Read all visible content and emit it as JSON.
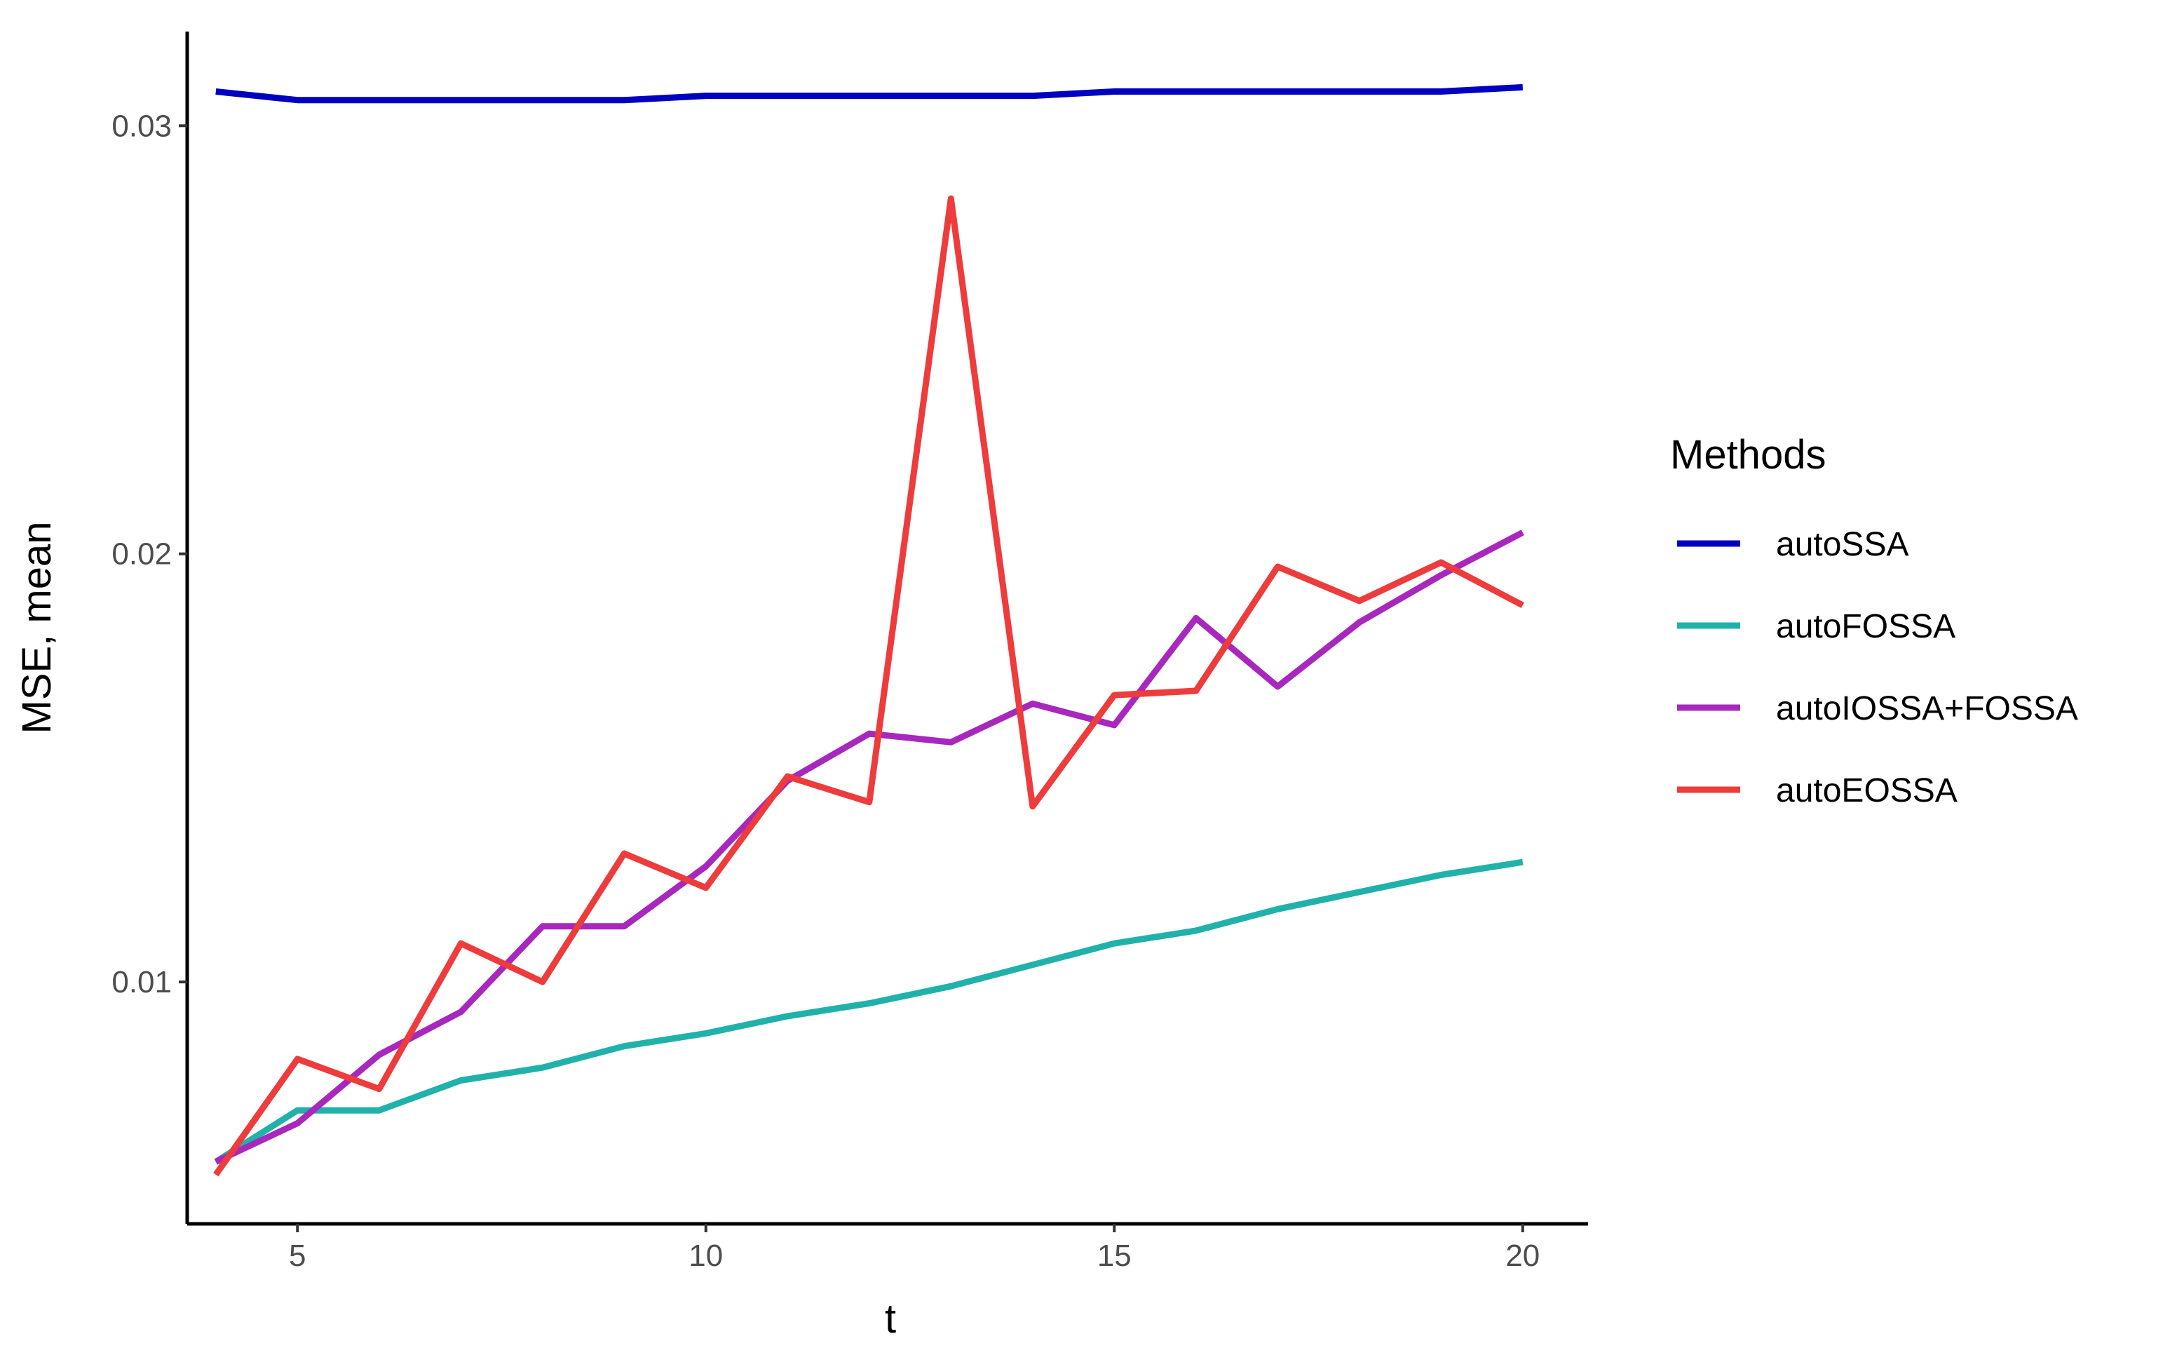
{
  "chart_data": {
    "type": "line",
    "xlabel": "t",
    "ylabel": "MSE, mean",
    "xlim": [
      3.65,
      20.8
    ],
    "ylim": [
      0.00435,
      0.0322
    ],
    "x_ticks": [
      5,
      10,
      15,
      20
    ],
    "x_tick_labels": [
      "5",
      "10",
      "15",
      "20"
    ],
    "y_ticks": [
      0.01,
      0.02,
      0.03
    ],
    "y_tick_labels": [
      "0.01",
      "0.02",
      "0.03"
    ],
    "grid": false,
    "legend": {
      "title": "Methods",
      "position": "right"
    },
    "x": [
      4,
      5,
      6,
      7,
      8,
      9,
      10,
      11,
      12,
      13,
      14,
      15,
      16,
      17,
      18,
      19,
      20
    ],
    "series": [
      {
        "name": "autoSSA",
        "color": "#0000C0",
        "values": [
          0.0308,
          0.0306,
          0.0306,
          0.0306,
          0.0306,
          0.0306,
          0.0307,
          0.0307,
          0.0307,
          0.0307,
          0.0307,
          0.0308,
          0.0308,
          0.0308,
          0.0308,
          0.0308,
          0.0309
        ]
      },
      {
        "name": "autoFOSSA",
        "color": "#20B2AA",
        "values": [
          0.0058,
          0.007,
          0.007,
          0.0077,
          0.008,
          0.0085,
          0.0088,
          0.0092,
          0.0095,
          0.0099,
          0.0104,
          0.0109,
          0.0112,
          0.0117,
          0.0121,
          0.0125,
          0.0128
        ]
      },
      {
        "name": "autoIOSSA+FOSSA",
        "color": "#A828BE",
        "values": [
          0.0058,
          0.0067,
          0.0083,
          0.0093,
          0.0113,
          0.0113,
          0.0127,
          0.0147,
          0.0158,
          0.0156,
          0.0165,
          0.016,
          0.0185,
          0.0169,
          0.0184,
          0.0195,
          0.0205
        ]
      },
      {
        "name": "autoEOSSA",
        "color": "#EE3B3B",
        "values": [
          0.0055,
          0.0082,
          0.0075,
          0.0109,
          0.01,
          0.013,
          0.0122,
          0.0148,
          0.0142,
          0.0283,
          0.0141,
          0.0167,
          0.0168,
          0.0197,
          0.0189,
          0.0198,
          0.0188
        ]
      }
    ]
  }
}
